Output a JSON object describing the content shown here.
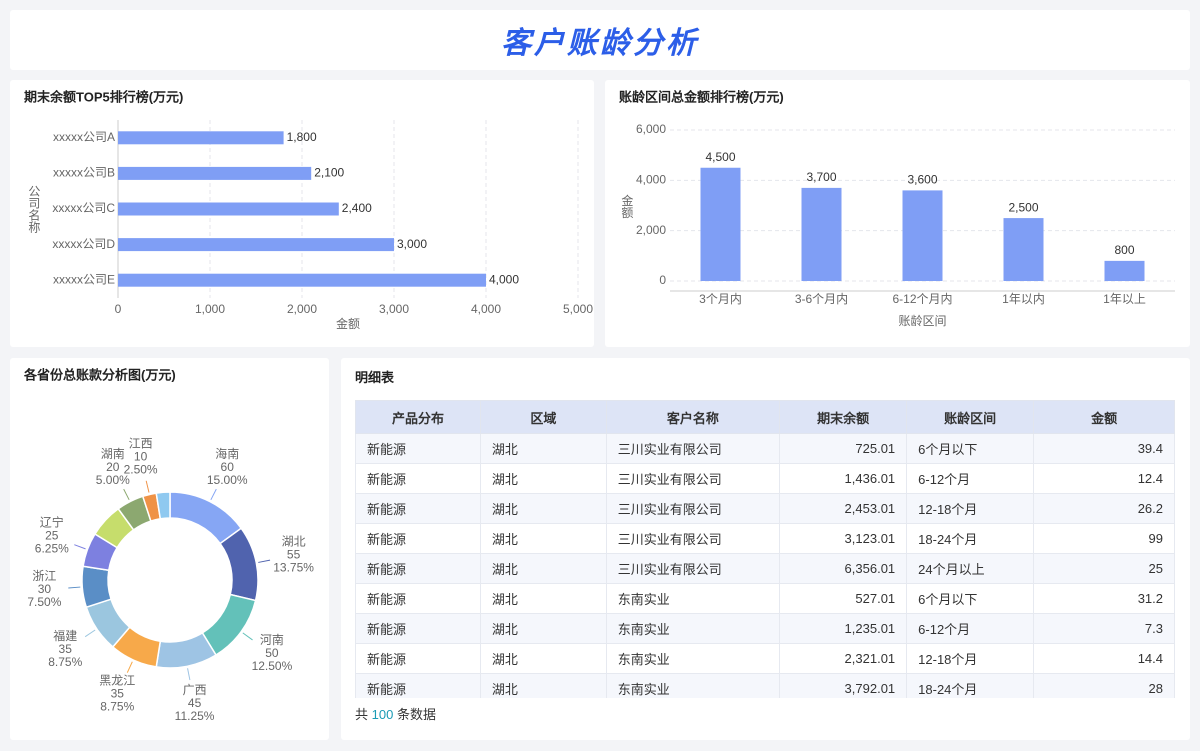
{
  "header": {
    "title": "客户账龄分析"
  },
  "chart_data": [
    {
      "type": "hbar",
      "title": "期末余额TOP5排行榜(万元)",
      "categories": [
        "xxxxx公司A",
        "xxxxx公司B",
        "xxxxx公司C",
        "xxxxx公司D",
        "xxxxx公司E"
      ],
      "values": [
        1800,
        2100,
        2400,
        3000,
        4000
      ],
      "value_labels": [
        "1,800",
        "2,100",
        "2,400",
        "3,000",
        "4,000"
      ],
      "color": "#7f9ef5",
      "xlim": [
        0,
        5000
      ],
      "xticks": [
        0,
        {
          "value": 1000,
          "label": "1,000"
        },
        {
          "value": 2000,
          "label": "2,000"
        },
        {
          "value": 3000,
          "label": "3,000"
        },
        {
          "value": 4000,
          "label": "4,000"
        },
        {
          "value": 5000,
          "label": "5,000"
        }
      ],
      "xlabel": "金额",
      "ylabel": "公司名称",
      "grid": true
    },
    {
      "type": "bar",
      "title": "账龄区间总金额排行榜(万元)",
      "categories": [
        "3个月内",
        "3-6个月内",
        "6-12个月内",
        "1年以内",
        "1年以上"
      ],
      "values": [
        4500,
        3700,
        3600,
        2500,
        800
      ],
      "value_labels": [
        "4,500",
        "3,700",
        "3,600",
        "2,500",
        "800"
      ],
      "color": "#7f9ef5",
      "ylim": [
        0,
        6000
      ],
      "yticks": [
        0,
        {
          "value": 2000,
          "label": "2,000"
        },
        {
          "value": 4000,
          "label": "4,000"
        },
        {
          "value": 6000,
          "label": "6,000"
        }
      ],
      "xlabel": "账龄区间",
      "ylabel": "金额",
      "grid": true
    },
    {
      "type": "pie",
      "title": "各省份总账款分析图(万元)",
      "categories": [
        "海南",
        "湖北",
        "河南",
        "广西",
        "黑龙江",
        "福建",
        "浙江",
        "辽宁",
        null,
        "湖南",
        "江西",
        null
      ],
      "values": [
        60,
        55,
        50,
        45,
        35,
        35,
        30,
        25,
        25,
        20,
        10,
        10
      ],
      "percent_labels": [
        "15.00%",
        "13.75%",
        "12.50%",
        "11.25%",
        "8.75%",
        "8.75%",
        "7.50%",
        "6.25%",
        null,
        "5.00%",
        "2.50%",
        null
      ],
      "colors": [
        "#86a6f4",
        "#5063ae",
        "#63c1b9",
        "#9ec4e4",
        "#f7a94a",
        "#9bc6df",
        "#5a8ec6",
        "#7d80e0",
        "#c6dd6c",
        "#8ca870",
        "#ef9246",
        "#8fc9f0"
      ]
    }
  ],
  "table": {
    "title": "明细表",
    "columns": [
      "产品分布",
      "区域",
      "客户名称",
      "期末余额",
      "账龄区间",
      "金额"
    ],
    "rows": [
      [
        "新能源",
        "湖北",
        "三川实业有限公司",
        "725.01",
        "6个月以下",
        "39.4"
      ],
      [
        "新能源",
        "湖北",
        "三川实业有限公司",
        "1,436.01",
        "6-12个月",
        "12.4"
      ],
      [
        "新能源",
        "湖北",
        "三川实业有限公司",
        "2,453.01",
        "12-18个月",
        "26.2"
      ],
      [
        "新能源",
        "湖北",
        "三川实业有限公司",
        "3,123.01",
        "18-24个月",
        "99"
      ],
      [
        "新能源",
        "湖北",
        "三川实业有限公司",
        "6,356.01",
        "24个月以上",
        "25"
      ],
      [
        "新能源",
        "湖北",
        "东南实业",
        "527.01",
        "6个月以下",
        "31.2"
      ],
      [
        "新能源",
        "湖北",
        "东南实业",
        "1,235.01",
        "6-12个月",
        "7.3"
      ],
      [
        "新能源",
        "湖北",
        "东南实业",
        "2,321.01",
        "12-18个月",
        "14.4"
      ],
      [
        "新能源",
        "湖北",
        "东南实业",
        "3,792.01",
        "18-24个月",
        "28"
      ]
    ],
    "footer": {
      "prefix": "共",
      "count": 100,
      "suffix": "条数据"
    }
  }
}
